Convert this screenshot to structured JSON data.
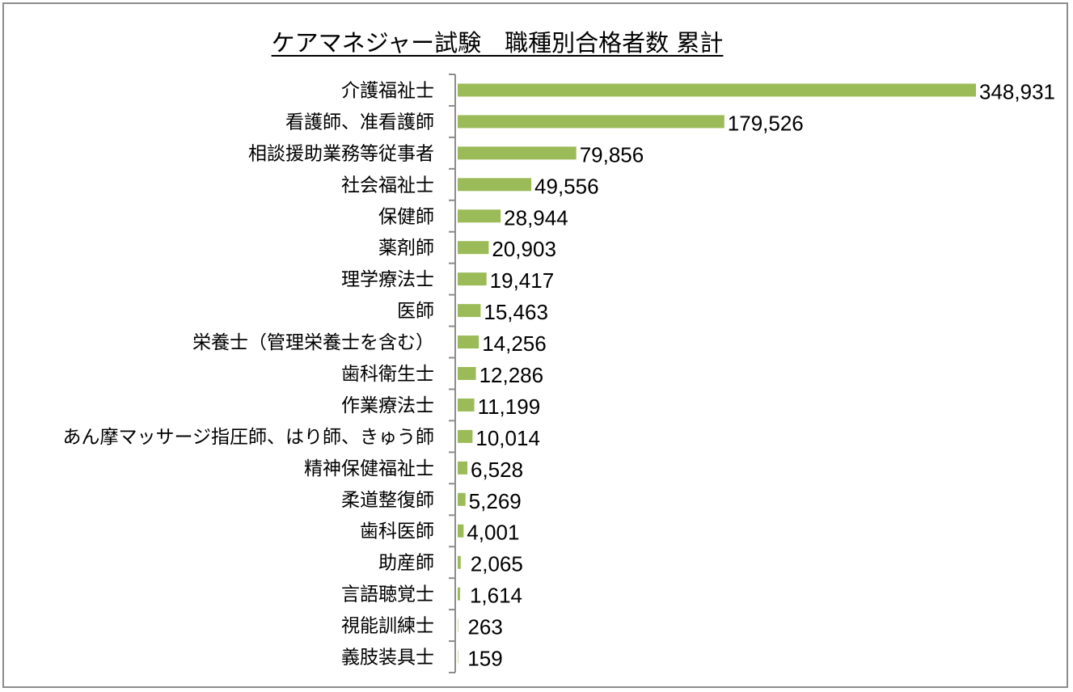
{
  "chart_data": {
    "type": "bar",
    "orientation": "horizontal",
    "title": "ケアマネジャー試験　職種別合格者数 累計",
    "categories": [
      "介護福祉士",
      "看護師、准看護師",
      "相談援助業務等従事者",
      "社会福祉士",
      "保健師",
      "薬剤師",
      "理学療法士",
      "医師",
      "栄養士（管理栄養士を含む）",
      "歯科衛生士",
      "作業療法士",
      "あん摩マッサージ指圧師、はり師、きゅう師",
      "精神保健福祉士",
      "柔道整復師",
      "歯科医師",
      "助産師",
      "言語聴覚士",
      "視能訓練士",
      "義肢装具士"
    ],
    "values": [
      348931,
      179526,
      79856,
      49556,
      28944,
      20903,
      19417,
      15463,
      14256,
      12286,
      11199,
      10014,
      6528,
      5269,
      4001,
      2065,
      1614,
      263,
      159
    ],
    "data_labels": [
      "348,931",
      "179,526",
      "79,856",
      "49,556",
      "28,944",
      "20,903",
      "19,417",
      "15,463",
      "14,256",
      "12,286",
      "11,199",
      "10,014",
      "6,528",
      "5,269",
      "4,001",
      "2,065",
      "1,614",
      "263",
      "159"
    ],
    "xlabel": "",
    "ylabel": "",
    "value_axis_visible": false,
    "grid": false,
    "legend": "none",
    "bar_color": "#9BBB59"
  }
}
